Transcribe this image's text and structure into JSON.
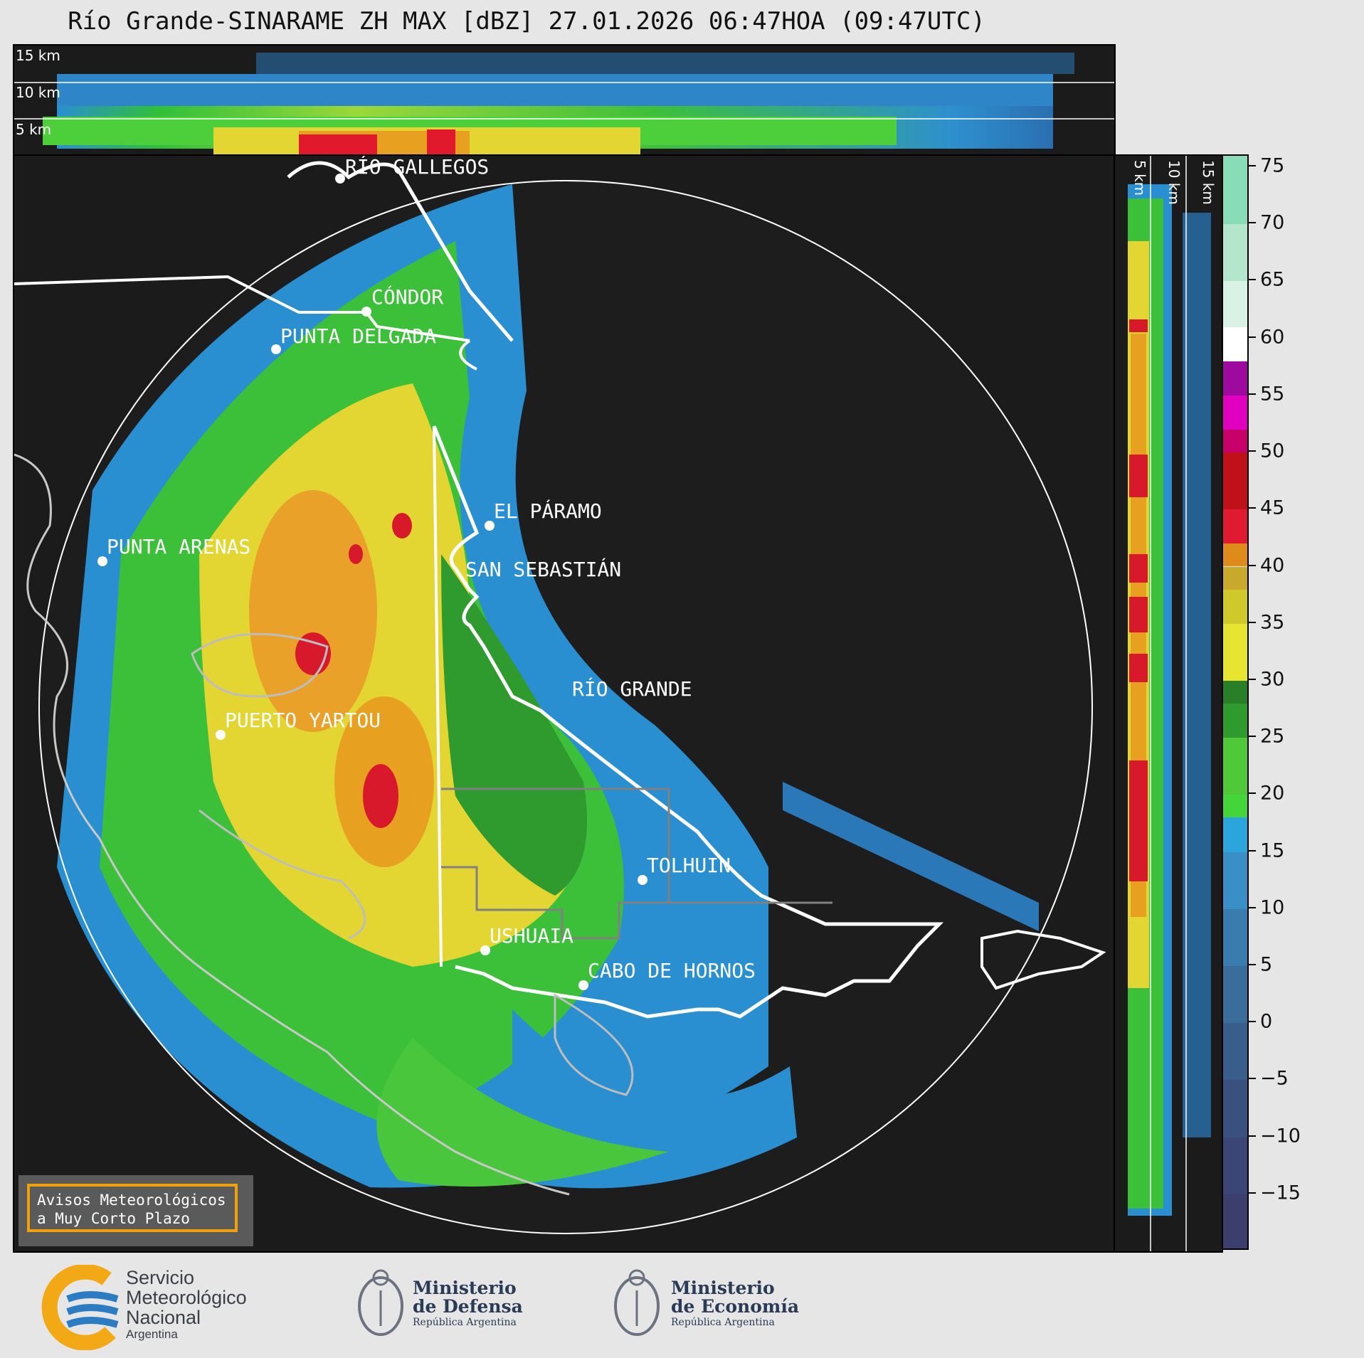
{
  "title": "Río Grande-SINARAME ZH MAX [dBZ] 27.01.2026 06:47HOA (09:47UTC)",
  "top_panel": {
    "height_labels": [
      "15 km",
      "10 km",
      "5 km"
    ]
  },
  "side_panel": {
    "height_labels": [
      "5 km",
      "10 km",
      "15 km"
    ]
  },
  "cities": [
    {
      "name": "RÍO GALLEGOS"
    },
    {
      "name": "CÓNDOR"
    },
    {
      "name": "PUNTA DELGADA"
    },
    {
      "name": "EL PÁRAMO"
    },
    {
      "name": "PUNTA ARENAS"
    },
    {
      "name": "SAN SEBASTIÁN"
    },
    {
      "name": "RÍO GRANDE"
    },
    {
      "name": "PUERTO YARTOU"
    },
    {
      "name": "TOLHUIN"
    },
    {
      "name": "USHUAIA"
    },
    {
      "name": "CABO DE HORNOS"
    }
  ],
  "warning_box": {
    "line1": "Avisos Meteorológicos",
    "line2": "a Muy Corto Plazo",
    "border_color": "#f0a10a"
  },
  "colorbar": {
    "ticks": [
      "75",
      "70",
      "65",
      "60",
      "55",
      "50",
      "45",
      "40",
      "35",
      "30",
      "25",
      "20",
      "15",
      "10",
      "5",
      "0",
      "−5",
      "−10",
      "−15"
    ],
    "min": -20,
    "max": 76
  },
  "footer": {
    "smn": {
      "line1": "Servicio",
      "line2": "Meteorológico",
      "line3": "Nacional",
      "line4": "Argentina"
    },
    "defensa": {
      "line1": "Ministerio",
      "line2": "de Defensa",
      "line3": "República Argentina"
    },
    "economia": {
      "line1": "Ministerio",
      "line2": "de Economía",
      "line3": "República Argentina"
    }
  }
}
